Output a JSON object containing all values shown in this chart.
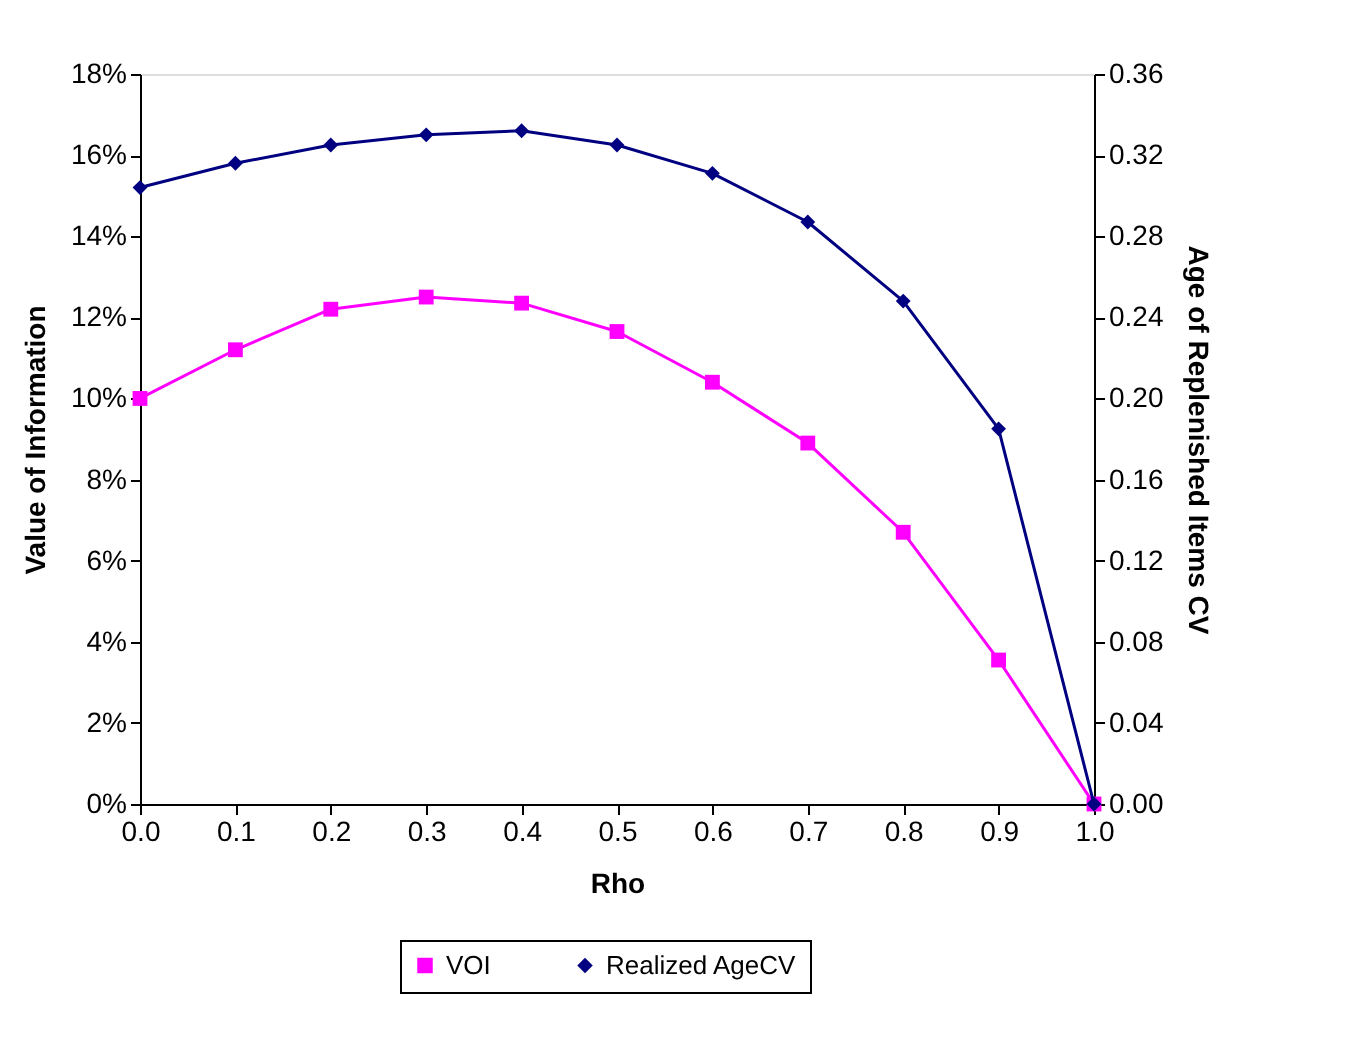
{
  "chart_data": {
    "type": "line",
    "xlabel": "Rho",
    "ylabel": "Value of Information",
    "y2label": "Age of Replenished Items CV",
    "x": [
      0.0,
      0.1,
      0.2,
      0.3,
      0.4,
      0.5,
      0.6,
      0.7,
      0.8,
      0.9,
      1.0
    ],
    "series": [
      {
        "name": "VOI",
        "color": "#ff00ff",
        "marker": "square",
        "values": [
          10.0,
          11.2,
          12.2,
          12.5,
          12.35,
          11.65,
          10.4,
          8.9,
          6.7,
          3.55,
          0
        ]
      },
      {
        "name": "Realized AgeCV",
        "color": "#000080",
        "marker": "diamond",
        "axis": "y2",
        "values": [
          0.304,
          0.316,
          0.325,
          0.33,
          0.332,
          0.325,
          0.311,
          0.287,
          0.248,
          0.185,
          0
        ]
      }
    ],
    "xlim": [
      0,
      1
    ],
    "xticks": [
      {
        "value": 0,
        "label": "0.0"
      },
      {
        "value": 0.1,
        "label": "0.1"
      },
      {
        "value": 0.2,
        "label": "0.2"
      },
      {
        "value": 0.3,
        "label": "0.3"
      },
      {
        "value": 0.4,
        "label": "0.4"
      },
      {
        "value": 0.5,
        "label": "0.5"
      },
      {
        "value": 0.6,
        "label": "0.6"
      },
      {
        "value": 0.7,
        "label": "0.7"
      },
      {
        "value": 0.8,
        "label": "0.8"
      },
      {
        "value": 0.9,
        "label": "0.9"
      },
      {
        "value": 1,
        "label": "1.0"
      }
    ],
    "ylim": [
      0,
      18
    ],
    "yticks": [
      {
        "value": 0,
        "label": "0%"
      },
      {
        "value": 2,
        "label": "2%"
      },
      {
        "value": 4,
        "label": "4%"
      },
      {
        "value": 6,
        "label": "6%"
      },
      {
        "value": 8,
        "label": "8%"
      },
      {
        "value": 10,
        "label": "10%"
      },
      {
        "value": 12,
        "label": "12%"
      },
      {
        "value": 14,
        "label": "14%"
      },
      {
        "value": 16,
        "label": "16%"
      },
      {
        "value": 18,
        "label": "18%"
      }
    ],
    "y2lim": [
      0,
      0.36
    ],
    "y2ticks": [
      {
        "value": 0,
        "label": "0.00"
      },
      {
        "value": 0.04,
        "label": "0.04"
      },
      {
        "value": 0.08,
        "label": "0.08"
      },
      {
        "value": 0.12,
        "label": "0.12"
      },
      {
        "value": 0.16,
        "label": "0.16"
      },
      {
        "value": 0.2,
        "label": "0.20"
      },
      {
        "value": 0.24,
        "label": "0.24"
      },
      {
        "value": 0.28,
        "label": "0.28"
      },
      {
        "value": 0.32,
        "label": "0.32"
      },
      {
        "value": 0.36,
        "label": "0.36"
      }
    ],
    "grid": false,
    "legend": "bottom",
    "line_style": "solid"
  }
}
